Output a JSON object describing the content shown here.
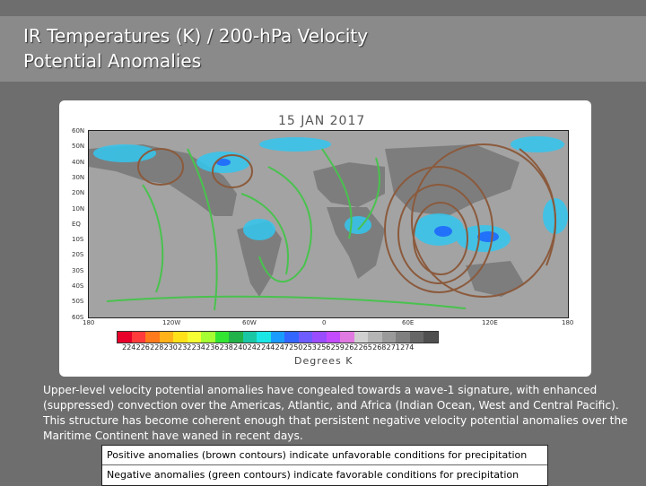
{
  "header": {
    "title_line1": "IR Temperatures (K) / 200-hPa Velocity",
    "title_line2": "Potential Anomalies"
  },
  "figure": {
    "date": "15 JAN 2017",
    "lat_labels": [
      "60N",
      "50N",
      "40N",
      "30N",
      "20N",
      "10N",
      "EQ",
      "10S",
      "20S",
      "30S",
      "40S",
      "50S",
      "60S"
    ],
    "lon_labels": [
      "180",
      "120W",
      "60W",
      "0",
      "60E",
      "120E",
      "180"
    ],
    "colorbar_ticks": [
      "224",
      "226",
      "228",
      "230",
      "232",
      "234",
      "236",
      "238",
      "240",
      "242",
      "244",
      "247",
      "250",
      "253",
      "256",
      "259",
      "262",
      "265",
      "268",
      "271",
      "274"
    ],
    "colorbar_colors": [
      "#e8002a",
      "#ff3b3b",
      "#ff7a1a",
      "#ffb21a",
      "#ffe11a",
      "#f5ff33",
      "#a5ff33",
      "#33e533",
      "#22b24a",
      "#1ac7a5",
      "#1ae6e6",
      "#1a9cff",
      "#3366ff",
      "#6f5cff",
      "#9a4cff",
      "#c44cff",
      "#e07ae0",
      "#d0d0d0",
      "#b5b5b5",
      "#9a9a9a",
      "#7f7f7f",
      "#666666",
      "#4f4f4f"
    ],
    "units": "Degrees K"
  },
  "description": "Upper-level velocity potential anomalies have congealed towards a wave-1 signature, with enhanced (suppressed) convection over the Americas, Atlantic, and Africa (Indian Ocean, West and Central Pacific).  This structure has become coherent enough that persistent negative velocity potential anomalies over the Maritime Continent have waned in recent days.",
  "legend": {
    "positive": "Positive anomalies (brown contours) indicate unfavorable conditions for precipitation",
    "negative": "Negative anomalies (green contours) indicate favorable conditions for precipitation"
  },
  "colors": {
    "positive_contour": "#8b5a3c",
    "negative_contour": "#49c24e",
    "land": "#7d7d7d",
    "ocean": "#a3a3a3"
  }
}
